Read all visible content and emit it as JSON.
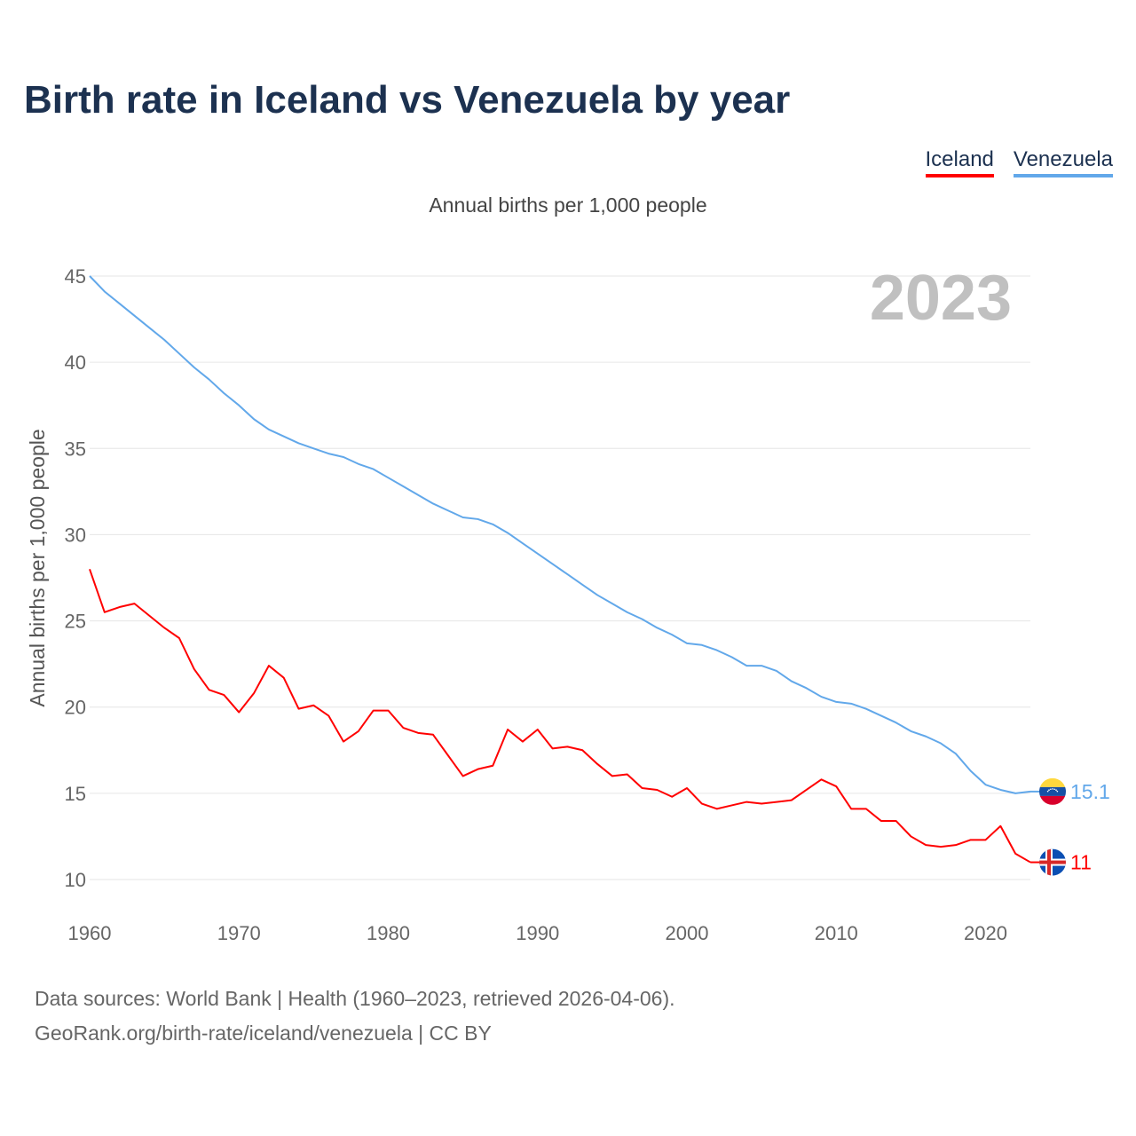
{
  "title": "Birth rate in Iceland vs Venezuela by year",
  "colors": {
    "iceland": "#ff0000",
    "venezuela": "#62a8ea"
  },
  "source": {
    "line1": "Data sources: World Bank | Health (1960–2023, retrieved 2026-04-06).",
    "line2": "GeoRank.org/birth-rate/iceland/venezuela | CC BY"
  },
  "chart_data": {
    "type": "line",
    "title": "Birth rate in Iceland vs Venezuela by year",
    "subtitle": "Annual births per 1,000 people",
    "ylabel": "Annual births per 1,000 people",
    "xlabel": "",
    "year_label": "2023",
    "xlim": [
      1960,
      2023
    ],
    "ylim": [
      10,
      45
    ],
    "yticks": [
      10,
      15,
      20,
      25,
      30,
      35,
      40,
      45
    ],
    "xticks": [
      1960,
      1970,
      1980,
      1990,
      2000,
      2010,
      2020
    ],
    "grid": true,
    "legend_position": "top-right",
    "x_start": 1960,
    "series": [
      {
        "name": "Iceland",
        "end_label": "11",
        "flag": "iceland-flag",
        "values": [
          28.0,
          25.5,
          25.8,
          26.0,
          25.3,
          24.6,
          24.0,
          22.2,
          21.0,
          20.7,
          19.7,
          20.8,
          22.4,
          21.7,
          19.9,
          20.1,
          19.5,
          18.0,
          18.6,
          19.8,
          19.8,
          18.8,
          18.5,
          18.4,
          17.2,
          16.0,
          16.4,
          16.6,
          18.7,
          18.0,
          18.7,
          17.6,
          17.7,
          17.5,
          16.7,
          16.0,
          16.1,
          15.3,
          15.2,
          14.8,
          15.3,
          14.4,
          14.1,
          14.3,
          14.5,
          14.4,
          14.5,
          14.6,
          15.2,
          15.8,
          15.4,
          14.1,
          14.1,
          13.4,
          13.4,
          12.5,
          12.0,
          11.9,
          12.0,
          12.3,
          12.3,
          13.1,
          11.5,
          11.0
        ]
      },
      {
        "name": "Venezuela",
        "end_label": "15.1",
        "flag": "venezuela-flag",
        "values": [
          45.0,
          44.1,
          43.4,
          42.7,
          42.0,
          41.3,
          40.5,
          39.7,
          39.0,
          38.2,
          37.5,
          36.7,
          36.1,
          35.7,
          35.3,
          35.0,
          34.7,
          34.5,
          34.1,
          33.8,
          33.3,
          32.8,
          32.3,
          31.8,
          31.4,
          31.0,
          30.9,
          30.6,
          30.1,
          29.5,
          28.9,
          28.3,
          27.7,
          27.1,
          26.5,
          26.0,
          25.5,
          25.1,
          24.6,
          24.2,
          23.7,
          23.6,
          23.3,
          22.9,
          22.4,
          22.4,
          22.1,
          21.5,
          21.1,
          20.6,
          20.3,
          20.2,
          19.9,
          19.5,
          19.1,
          18.6,
          18.3,
          17.9,
          17.3,
          16.3,
          15.5,
          15.2,
          15.0,
          15.1
        ]
      }
    ]
  }
}
